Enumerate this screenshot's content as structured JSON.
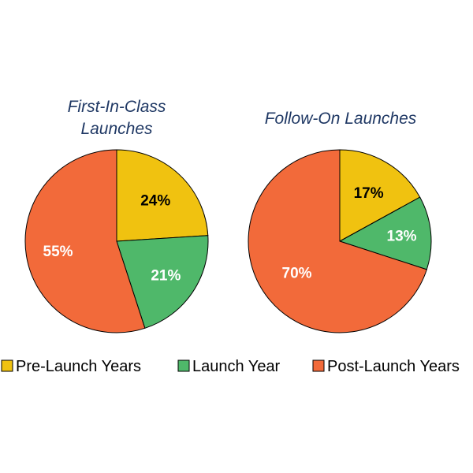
{
  "chart_data": [
    {
      "type": "pie",
      "title": "First-In-Class Launches",
      "title_lines": [
        "First-In-Class",
        "Launches"
      ],
      "categories": [
        "Pre-Launch Years",
        "Launch Year",
        "Post-Launch Years"
      ],
      "values": [
        24,
        21,
        55
      ],
      "labels": [
        "24%",
        "21%",
        "55%"
      ]
    },
    {
      "type": "pie",
      "title": "Follow-On Launches",
      "title_lines": [
        "Follow-On Launches"
      ],
      "categories": [
        "Pre-Launch Years",
        "Launch Year",
        "Post-Launch Years"
      ],
      "values": [
        17,
        13,
        70
      ],
      "labels": [
        "17%",
        "13%",
        "70%"
      ]
    }
  ],
  "legend": {
    "placement": "bottom",
    "items": [
      {
        "label": "Pre-Launch Years",
        "color": "#f0c210"
      },
      {
        "label": "Launch Year",
        "color": "#4fb86a"
      },
      {
        "label": "Post-Launch Years",
        "color": "#f26a3a"
      }
    ]
  },
  "colors": {
    "pre_launch": "#f0c210",
    "launch": "#4fb86a",
    "post_launch": "#f26a3a",
    "label_dark": "#000000",
    "label_light": "#ffffff"
  }
}
